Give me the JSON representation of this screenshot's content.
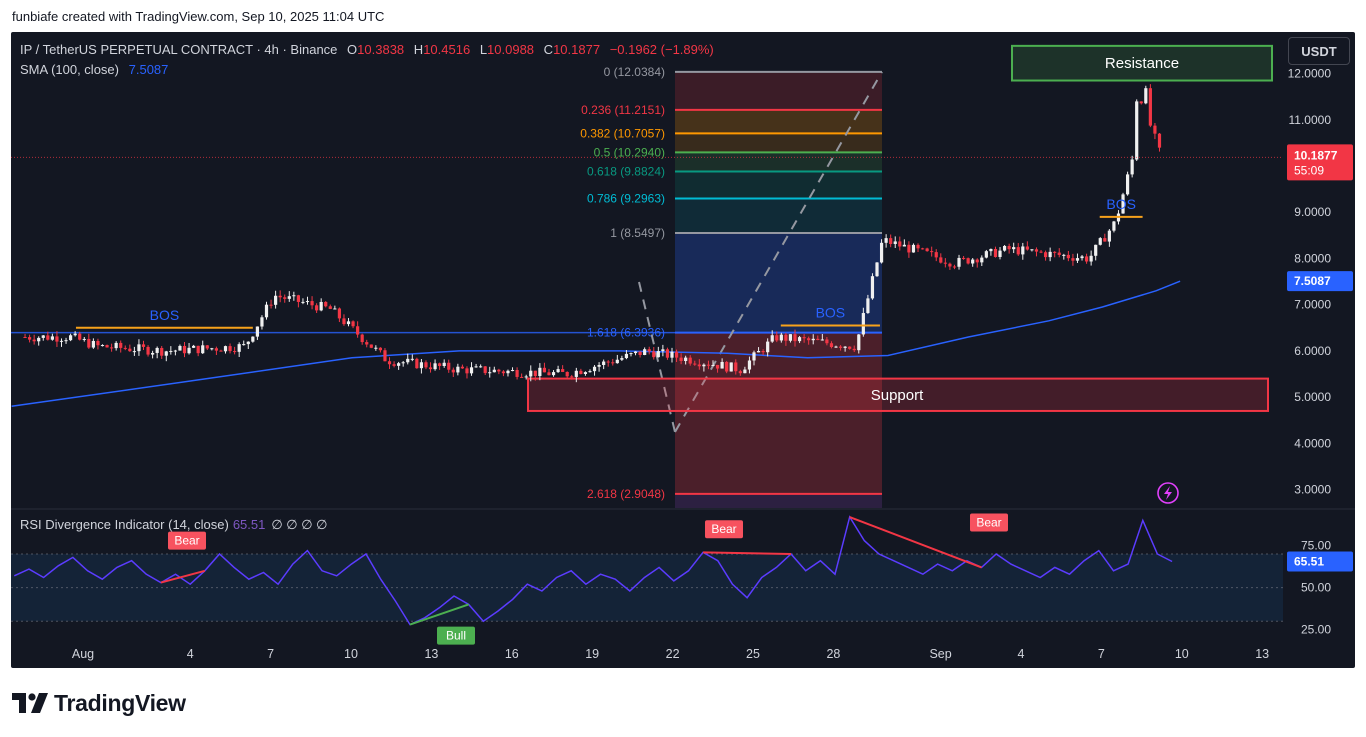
{
  "caption": "funbiafe created with TradingView.com, Sep 10, 2025 11:04 UTC",
  "header": {
    "symbol": "IP / TetherUS PERPETUAL CONTRACT · 4h · Binance",
    "o_label": "O",
    "o_value": "10.3838",
    "h_label": "H",
    "h_value": "10.4516",
    "l_label": "L",
    "l_value": "10.0988",
    "c_label": "C",
    "c_value": "10.1877",
    "change": "−0.1962 (−1.89%)",
    "sma_label": "SMA (100, close)",
    "sma_value": "7.5087",
    "currency_button": "USDT"
  },
  "rsi_header": {
    "label": "RSI Divergence Indicator (14, close)",
    "value": "65.51",
    "extras": "∅ ∅ ∅ ∅"
  },
  "colors": {
    "background": "#131722",
    "up": "#f0f0f0",
    "down": "#f23645",
    "sma": "#2962ff",
    "rsi": "#5b3cff",
    "bos": "#f7a21b",
    "resistance": "#4caf50",
    "support": "#f23645"
  },
  "chart_data": [
    {
      "type": "candlestick",
      "title": "IP / TetherUS PERPETUAL CONTRACT · 4h · Binance",
      "y_axis": {
        "ylim": [
          2.6,
          12.9
        ],
        "ticks": [
          "12.0000",
          "11.0000",
          "10.0000",
          "9.0000",
          "8.0000",
          "7.0000",
          "6.0000",
          "5.0000",
          "4.0000",
          "3.0000"
        ],
        "position": "right"
      },
      "x_axis": {
        "ticks": [
          "Aug",
          "4",
          "7",
          "10",
          "13",
          "16",
          "19",
          "22",
          "25",
          "28",
          "Sep",
          "4",
          "7",
          "10",
          "13"
        ]
      },
      "price_ohlc_approx": [
        {
          "x": "Jul 31",
          "close": 6.3
        },
        {
          "x": "Aug 1",
          "close": 6.1
        },
        {
          "x": "Aug 4",
          "close": 6.0
        },
        {
          "x": "Aug 7",
          "close": 6.1
        },
        {
          "x": "Aug 8",
          "close": 7.2
        },
        {
          "x": "Aug 10",
          "close": 6.9
        },
        {
          "x": "Aug 12",
          "close": 5.8
        },
        {
          "x": "Aug 15",
          "close": 5.6
        },
        {
          "x": "Aug 19",
          "close": 5.5
        },
        {
          "x": "Aug 22",
          "close": 6.0
        },
        {
          "x": "Aug 25",
          "close": 5.6
        },
        {
          "x": "Aug 26",
          "close": 6.3
        },
        {
          "x": "Aug 29",
          "close": 6.1
        },
        {
          "x": "Aug 30",
          "close": 8.4
        },
        {
          "x": "Sep 2",
          "close": 7.9
        },
        {
          "x": "Sep 4",
          "close": 8.2
        },
        {
          "x": "Sep 7",
          "close": 8.0
        },
        {
          "x": "Sep 8",
          "close": 8.8
        },
        {
          "x": "Sep 9",
          "close": 11.2
        },
        {
          "x": "Sep 10",
          "close": 10.1877
        }
      ],
      "last_price": {
        "value": "10.1877",
        "countdown": "55:09"
      },
      "sma": {
        "label": "SMA (100, close)",
        "value": "7.5087"
      },
      "fibonacci": [
        {
          "label": "0 (12.0384)",
          "level": 12.0384,
          "color": "#9598a1"
        },
        {
          "label": "0.236 (11.2151)",
          "level": 11.2151,
          "color": "#f23645"
        },
        {
          "label": "0.382 (10.7057)",
          "level": 10.7057,
          "color": "#ff9800"
        },
        {
          "label": "0.5 (10.2940)",
          "level": 10.294,
          "color": "#4caf50"
        },
        {
          "label": "0.618 (9.8824)",
          "level": 9.8824,
          "color": "#089981"
        },
        {
          "label": "0.786 (9.2963)",
          "level": 9.2963,
          "color": "#00bcd4"
        },
        {
          "label": "1 (8.5497)",
          "level": 8.5497,
          "color": "#9598a1"
        },
        {
          "label": "1.618 (6.3936)",
          "level": 6.3936,
          "color": "#2962ff"
        },
        {
          "label": "2.618 (2.9048)",
          "level": 2.9048,
          "color": "#f23645"
        }
      ],
      "annotations": {
        "resistance": "Resistance",
        "support": "Support",
        "bos": [
          "BOS",
          "BOS",
          "BOS"
        ],
        "resistance_zone": [
          11.85,
          12.6
        ],
        "support_zone": [
          4.7,
          5.4
        ],
        "bos_levels": [
          6.5,
          6.55,
          8.9
        ]
      }
    },
    {
      "type": "line",
      "title": "RSI Divergence Indicator (14, close)",
      "y_axis": {
        "ylim": [
          20,
          95
        ],
        "ticks": [
          "75.00",
          "50.00",
          "25.00"
        ],
        "band": [
          30,
          70
        ]
      },
      "series": [
        {
          "name": "",
          "values": [
            57,
            61,
            56,
            63,
            68,
            60,
            55,
            62,
            66,
            58,
            53,
            58,
            52,
            60,
            70,
            62,
            55,
            59,
            52,
            64,
            72,
            60,
            57,
            64,
            70,
            55,
            42,
            28,
            32,
            38,
            45,
            40,
            30,
            36,
            43,
            52,
            48,
            56,
            60,
            52,
            58,
            55,
            48,
            56,
            62,
            54,
            60,
            71,
            66,
            52,
            44,
            56,
            62,
            70,
            60,
            66,
            58,
            92,
            78,
            70,
            66,
            62,
            58,
            64,
            60,
            66,
            62,
            70,
            64,
            60,
            56,
            62,
            58,
            66,
            72,
            60,
            64,
            90,
            70,
            65.51
          ]
        }
      ],
      "last_value": "65.51",
      "divergence_labels": [
        "Bear",
        "Bull",
        "Bear",
        "Bear"
      ]
    }
  ],
  "footer": {
    "brand": "TradingView"
  }
}
